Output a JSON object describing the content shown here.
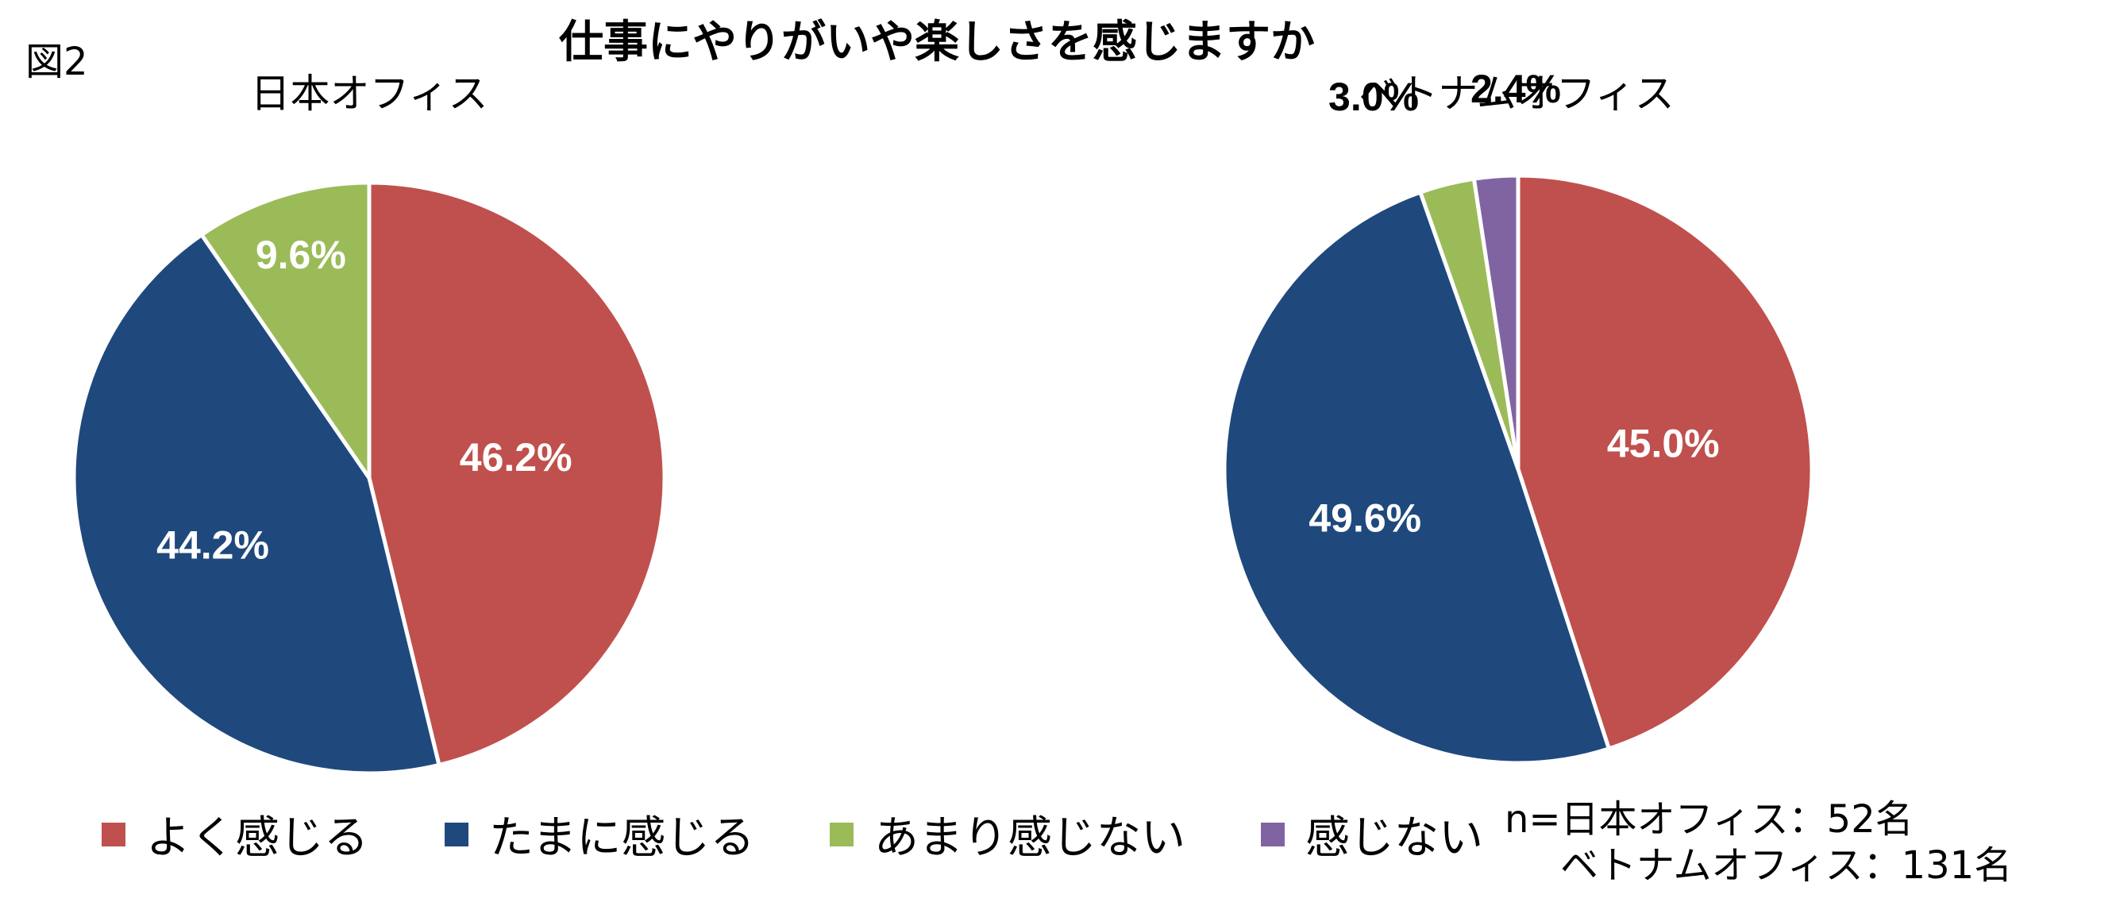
{
  "figure_label": "図2",
  "title": "仕事にやりがいや楽しさを感じますか",
  "colors": {
    "よく感じる": "#c0504d",
    "たまに感じる": "#1f497d",
    "あまり感じない": "#9bbb59",
    "感じない": "#8064a2"
  },
  "chart_data": [
    {
      "type": "pie",
      "title": "日本オフィス",
      "categories": [
        "よく感じる",
        "たまに感じる",
        "あまり感じない"
      ],
      "values": [
        46.2,
        44.2,
        9.6
      ],
      "labels": [
        "46.2%",
        "44.2%",
        "9.6%"
      ],
      "label_placement": "inside"
    },
    {
      "type": "pie",
      "title": "ベトナムオフィス",
      "categories": [
        "よく感じる",
        "たまに感じる",
        "あまり感じない",
        "感じない"
      ],
      "values": [
        45.0,
        49.6,
        3.0,
        2.4
      ],
      "labels": [
        "45.0%",
        "49.6%",
        "3.0%",
        "2.4%"
      ],
      "label_placement": "inside, small slices outside"
    }
  ],
  "legend": {
    "placement": "bottom",
    "items": [
      "よく感じる",
      "たまに感じる",
      "あまり感じない",
      "感じない"
    ]
  },
  "note": {
    "line1": "n=日本オフィス：52名",
    "line2": "ベトナムオフィス：131名"
  }
}
